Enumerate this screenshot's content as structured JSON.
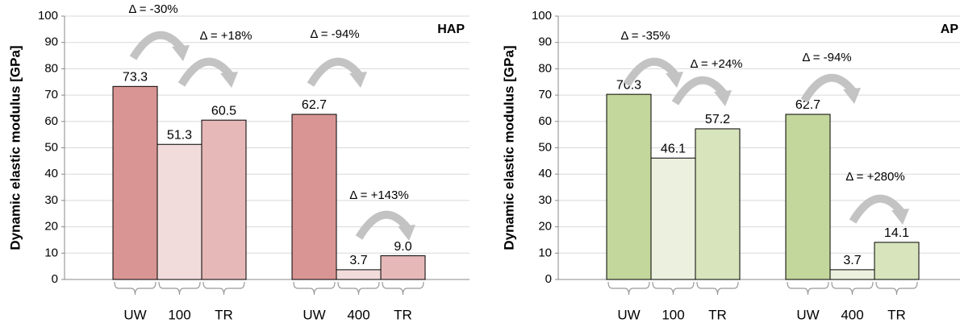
{
  "chart_data": [
    {
      "type": "bar",
      "title": "HAP",
      "ylabel": "Dynamic elastic modulus [GPa]",
      "categories": [
        "UW",
        "100",
        "TR",
        "UW",
        "400",
        "TR"
      ],
      "values": [
        73.3,
        51.3,
        60.5,
        62.7,
        3.7,
        9.0
      ],
      "value_labels": [
        "73.3",
        "51.3",
        "60.5",
        "62.7",
        "3.7",
        "9.0"
      ],
      "colors": [
        "#d99594",
        "#f2dcdb",
        "#e6b9b8",
        "#d99594",
        "#f2dcdb",
        "#e6b9b8"
      ],
      "annotations": [
        "Δ = -30%",
        "Δ = +18%",
        "Δ = -94%",
        "Δ = +143%"
      ],
      "ylim": [
        0,
        100
      ],
      "yticks": [
        0,
        10,
        20,
        30,
        40,
        50,
        60,
        70,
        80,
        90,
        100
      ],
      "grid": true
    },
    {
      "type": "bar",
      "title": "AP",
      "ylabel": "Dynamic elastic modulus [GPa]",
      "categories": [
        "UW",
        "100",
        "TR",
        "UW",
        "400",
        "TR"
      ],
      "values": [
        70.3,
        46.1,
        57.2,
        62.7,
        3.7,
        14.1
      ],
      "value_labels": [
        "70.3",
        "46.1",
        "57.2",
        "62.7",
        "3.7",
        "14.1"
      ],
      "colors": [
        "#c3d69b",
        "#ebf1de",
        "#d7e4bc",
        "#c3d69b",
        "#ebf1de",
        "#d7e4bc"
      ],
      "annotations": [
        "Δ = -35%",
        "Δ = +24%",
        "Δ = -94%",
        "Δ = +280%"
      ],
      "ylim": [
        0,
        100
      ],
      "yticks": [
        0,
        10,
        20,
        30,
        40,
        50,
        60,
        70,
        80,
        90,
        100
      ],
      "grid": true
    }
  ]
}
